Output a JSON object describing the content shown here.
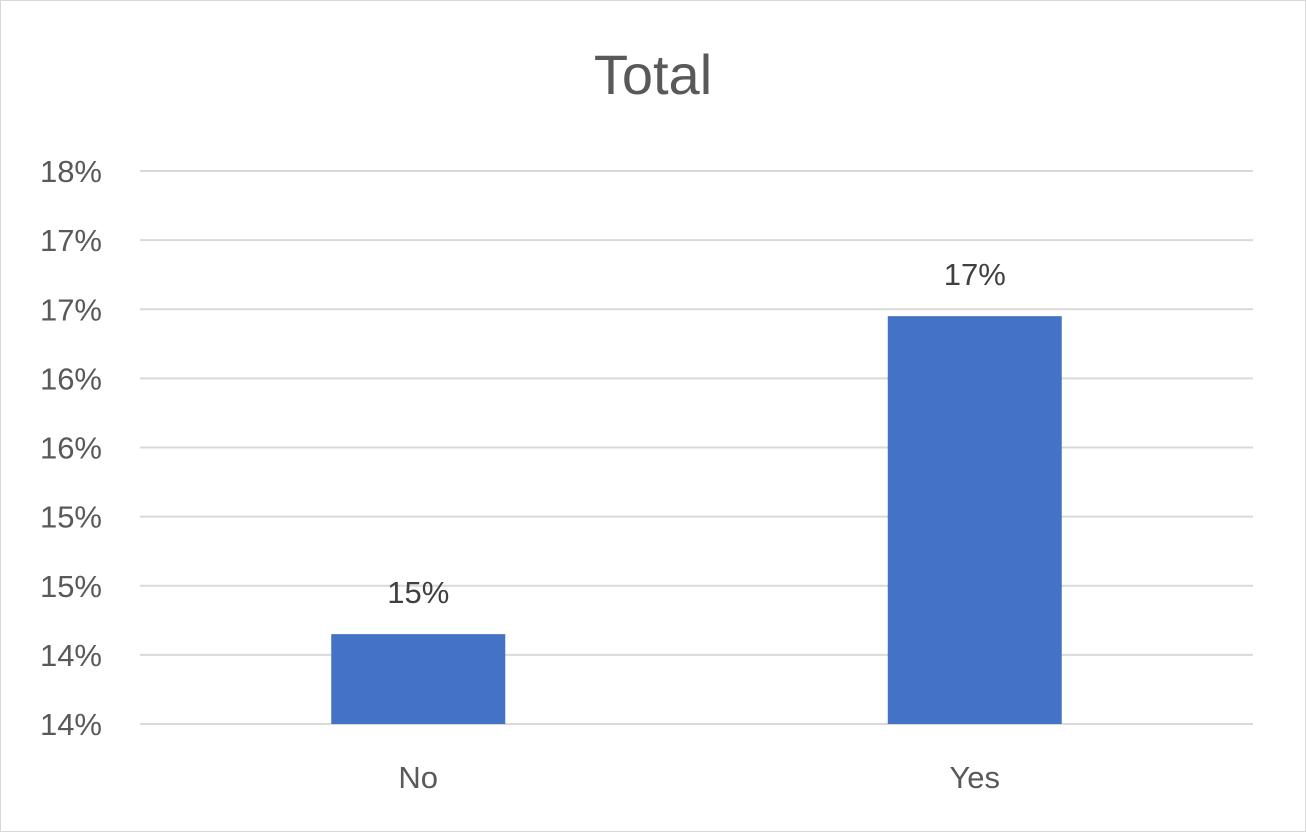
{
  "chart_data": {
    "type": "bar",
    "title": "Total",
    "categories": [
      "No",
      "Yes"
    ],
    "values": [
      0.1465,
      0.1695
    ],
    "data_labels": [
      "15%",
      "17%"
    ],
    "y_tick_labels": [
      "14%",
      "14%",
      "15%",
      "15%",
      "16%",
      "16%",
      "17%",
      "17%",
      "18%"
    ],
    "ylim": [
      0.14,
      0.18
    ],
    "y_tick_step": 0.005,
    "grid": true,
    "legend": "none",
    "xlabel": "",
    "ylabel": "",
    "colors": {
      "bar": "#4472C4",
      "grid": "#d9d9d9",
      "text": "#595959"
    }
  }
}
